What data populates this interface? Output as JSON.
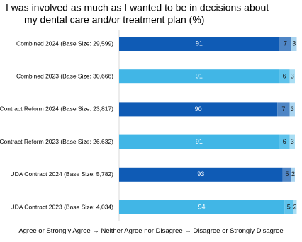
{
  "chart_data": {
    "type": "stacked-bar-horizontal",
    "title": [
      "I was involved as much as I wanted to be in decisions about",
      "my dental care and/or treatment plan (%)"
    ],
    "categories": [
      "Combined 2024 (Base Size: 29,599)",
      "Combined 2023 (Base Size: 30,666)",
      "Contract Reform 2024 (Base Size: 23,817)",
      "Contract Reform 2023 (Base Size: 26,632)",
      "UDA Contract 2024 (Base Size: 5,782)",
      "UDA Contract 2023 (Base Size: 4,034)"
    ],
    "series": [
      {
        "name": "Agree or Strongly Agree",
        "colors": [
          "#0f5bb5",
          "#41b6e6",
          "#0f5bb5",
          "#41b6e6",
          "#0f5bb5",
          "#41b6e6"
        ],
        "values": [
          91,
          91,
          90,
          91,
          93,
          94
        ]
      },
      {
        "name": "Neither Agree nor Disagree",
        "colors": [
          "#4f86c6",
          "#5ec3ec",
          "#4f86c6",
          "#5ec3ec",
          "#4f86c6",
          "#5ec3ec"
        ],
        "values": [
          7,
          6,
          7,
          6,
          5,
          5
        ]
      },
      {
        "name": "Disagree or Strongly Disagree",
        "colors": [
          "#a9d4f0",
          "#a9def4",
          "#a9d4f0",
          "#a9def4",
          "#a9d4f0",
          "#a9def4"
        ],
        "values": [
          3,
          3,
          3,
          3,
          2,
          2
        ]
      }
    ],
    "legend_separator": "→",
    "xlim": [
      0,
      100
    ]
  }
}
